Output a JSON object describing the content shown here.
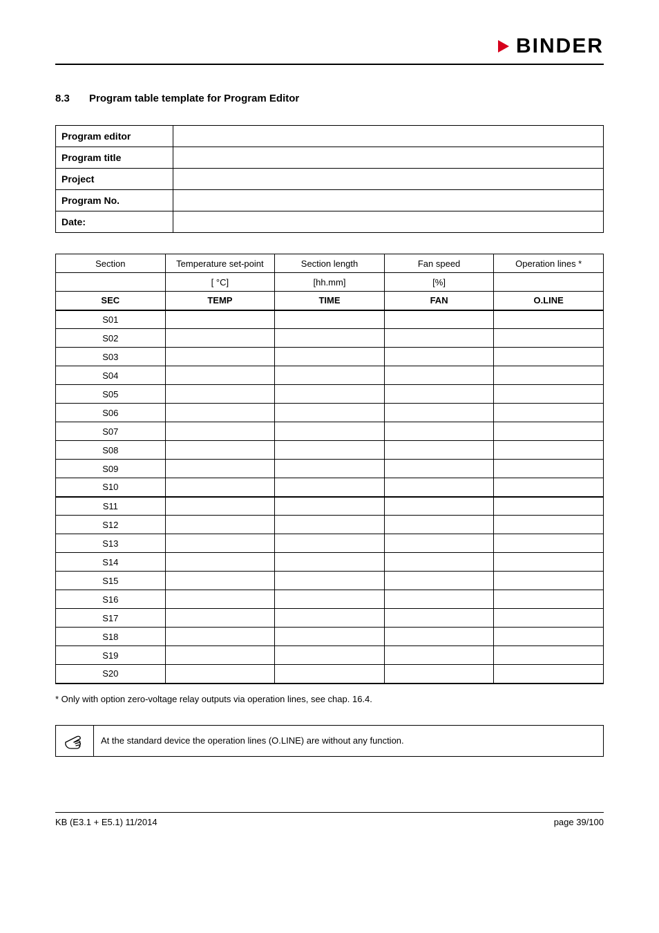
{
  "brand": {
    "name": "BINDER",
    "triangle_color": "#d6001c"
  },
  "heading": {
    "number": "8.3",
    "title": "Program table template for Program Editor"
  },
  "meta_table": {
    "rows": [
      {
        "label": "Program editor",
        "value": ""
      },
      {
        "label": "Program title",
        "value": ""
      },
      {
        "label": "Project",
        "value": ""
      },
      {
        "label": "Program No.",
        "value": ""
      },
      {
        "label": "Date:",
        "value": ""
      }
    ]
  },
  "data_table": {
    "header_row1": {
      "sec": "Section",
      "temp": "Temperature set-point",
      "time": "Section length",
      "fan": "Fan speed",
      "oline": "Operation lines *"
    },
    "header_row2": {
      "sec": "",
      "temp": "[ °C]",
      "time": "[hh.mm]",
      "fan": "[%]",
      "oline": ""
    },
    "header_row3": {
      "sec": "SEC",
      "temp": "TEMP",
      "time": "TIME",
      "fan": "FAN",
      "oline": "O.LINE"
    },
    "rows": [
      "S01",
      "S02",
      "S03",
      "S04",
      "S05",
      "S06",
      "S07",
      "S08",
      "S09",
      "S10",
      "S11",
      "S12",
      "S13",
      "S14",
      "S15",
      "S16",
      "S17",
      "S18",
      "S19",
      "S20"
    ],
    "thick_after_index": 9
  },
  "footnote": "* Only with option zero-voltage relay outputs via operation lines, see chap. 16.4.",
  "note": "At the standard device the operation lines (O.LINE) are without any function.",
  "footer": {
    "left": "KB (E3.1 + E5.1) 11/2014",
    "right": "page 39/100"
  }
}
